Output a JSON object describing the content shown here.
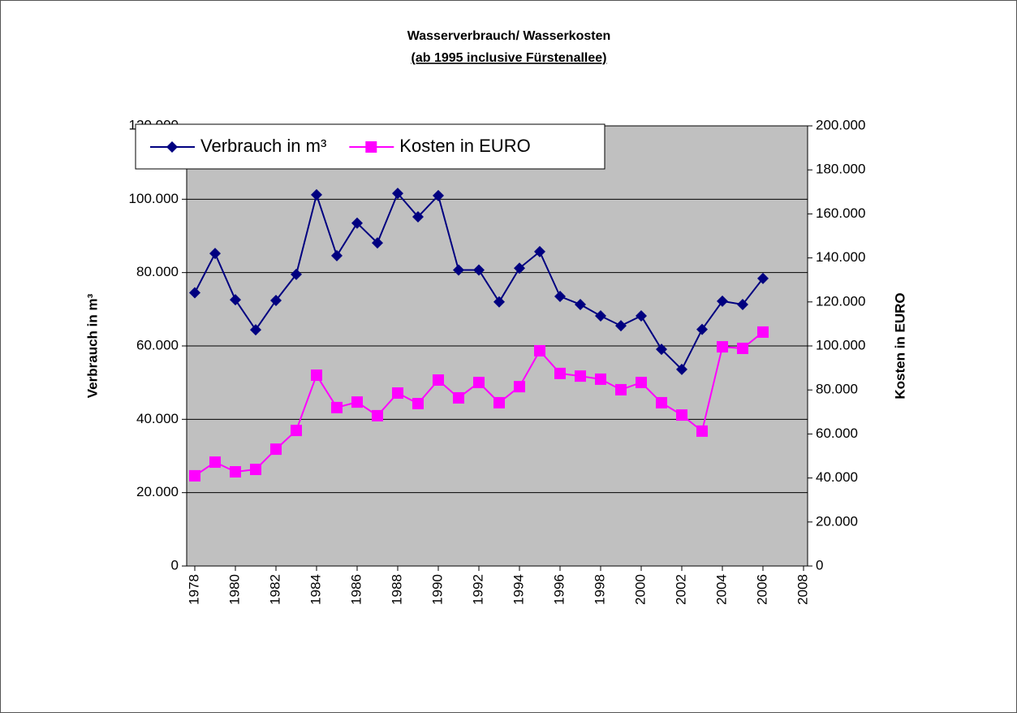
{
  "chart_data": {
    "type": "line",
    "title": "Wasserverbrauch/ Wasserkosten",
    "subtitle": "(ab 1995 inclusive Fürstenallee)",
    "y_label": "Verbrauch in m³",
    "y2_label": "Kosten in EURO",
    "x": [
      1978,
      1979,
      1980,
      1981,
      1982,
      1983,
      1984,
      1985,
      1986,
      1987,
      1988,
      1989,
      1990,
      1991,
      1992,
      1993,
      1994,
      1995,
      1996,
      1997,
      1998,
      1999,
      2000,
      2001,
      2002,
      2003,
      2004,
      2005,
      2006
    ],
    "xlim": [
      1977.6,
      2008.2
    ],
    "xticks": [
      1978,
      1980,
      1982,
      1984,
      1986,
      1988,
      1990,
      1992,
      1994,
      1996,
      1998,
      2000,
      2002,
      2004,
      2006,
      2008
    ],
    "ylim": [
      0,
      120000
    ],
    "yticks": [
      0,
      {
        "value": 20000,
        "label": "20.000"
      },
      {
        "value": 40000,
        "label": "40.000"
      },
      {
        "value": 60000,
        "label": "60.000"
      },
      {
        "value": 80000,
        "label": "80.000"
      },
      {
        "value": 100000,
        "label": "100.000"
      },
      {
        "value": 120000,
        "label": "120.000"
      }
    ],
    "y2lim": [
      0,
      200000
    ],
    "y2ticks": [
      0,
      {
        "value": 20000,
        "label": "20.000"
      },
      {
        "value": 40000,
        "label": "40.000"
      },
      {
        "value": 60000,
        "label": "60.000"
      },
      {
        "value": 80000,
        "label": "80.000"
      },
      {
        "value": 100000,
        "label": "100.000"
      },
      {
        "value": 120000,
        "label": "120.000"
      },
      {
        "value": 140000,
        "label": "140.000"
      },
      {
        "value": 160000,
        "label": "160.000"
      },
      {
        "value": 180000,
        "label": "180.000"
      },
      {
        "value": 200000,
        "label": "200.000"
      }
    ],
    "grid": true,
    "legend": "top-left",
    "series": [
      {
        "name": "Verbrauch in m³",
        "color": "#000080",
        "marker": "diamond",
        "values": [
          74500,
          85200,
          72600,
          64400,
          72400,
          79500,
          101200,
          84600,
          93500,
          88100,
          101600,
          95200,
          101000,
          80700,
          80700,
          72000,
          81200,
          85700,
          73500,
          71300,
          68200,
          65500,
          68200,
          59100,
          53600,
          64500,
          72200,
          71300,
          78400
        ]
      },
      {
        "name": "Kosten in EURO",
        "color": "#ff00ff",
        "marker": "square",
        "axis": "y2",
        "values": [
          41000,
          47200,
          42800,
          43900,
          53100,
          61600,
          86700,
          72000,
          74500,
          68300,
          78600,
          73800,
          84500,
          76400,
          83400,
          74200,
          81500,
          97800,
          87500,
          86300,
          84900,
          80100,
          83400,
          74200,
          68600,
          61300,
          99600,
          98900,
          106300
        ]
      }
    ]
  }
}
